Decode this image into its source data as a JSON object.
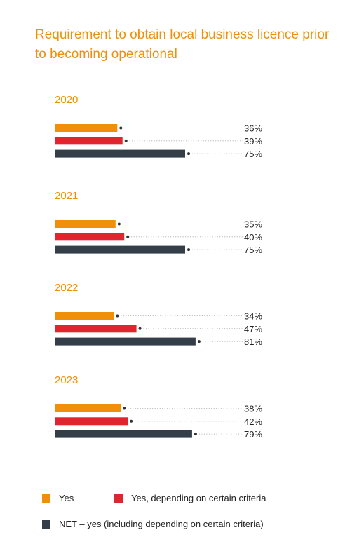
{
  "chart_data": {
    "type": "bar",
    "orientation": "horizontal",
    "title": "Requirement to obtain local business licence prior to becoming operational",
    "groups": [
      "2020",
      "2021",
      "2022",
      "2023"
    ],
    "series": [
      {
        "name": "Yes",
        "color": "#f0900a",
        "values": [
          36,
          35,
          34,
          38
        ]
      },
      {
        "name": "Yes, depending on certain criteria",
        "color": "#e0252f",
        "values": [
          39,
          40,
          47,
          42
        ]
      },
      {
        "name": "NET – yes (including depending on certain criteria)",
        "color": "#333e48",
        "values": [
          75,
          75,
          81,
          79
        ]
      }
    ],
    "value_suffix": "%",
    "xlim": [
      0,
      100
    ]
  },
  "legend": {
    "yes": "Yes",
    "criteria": "Yes, depending on certain criteria",
    "net": "NET – yes (including depending on certain criteria)"
  }
}
